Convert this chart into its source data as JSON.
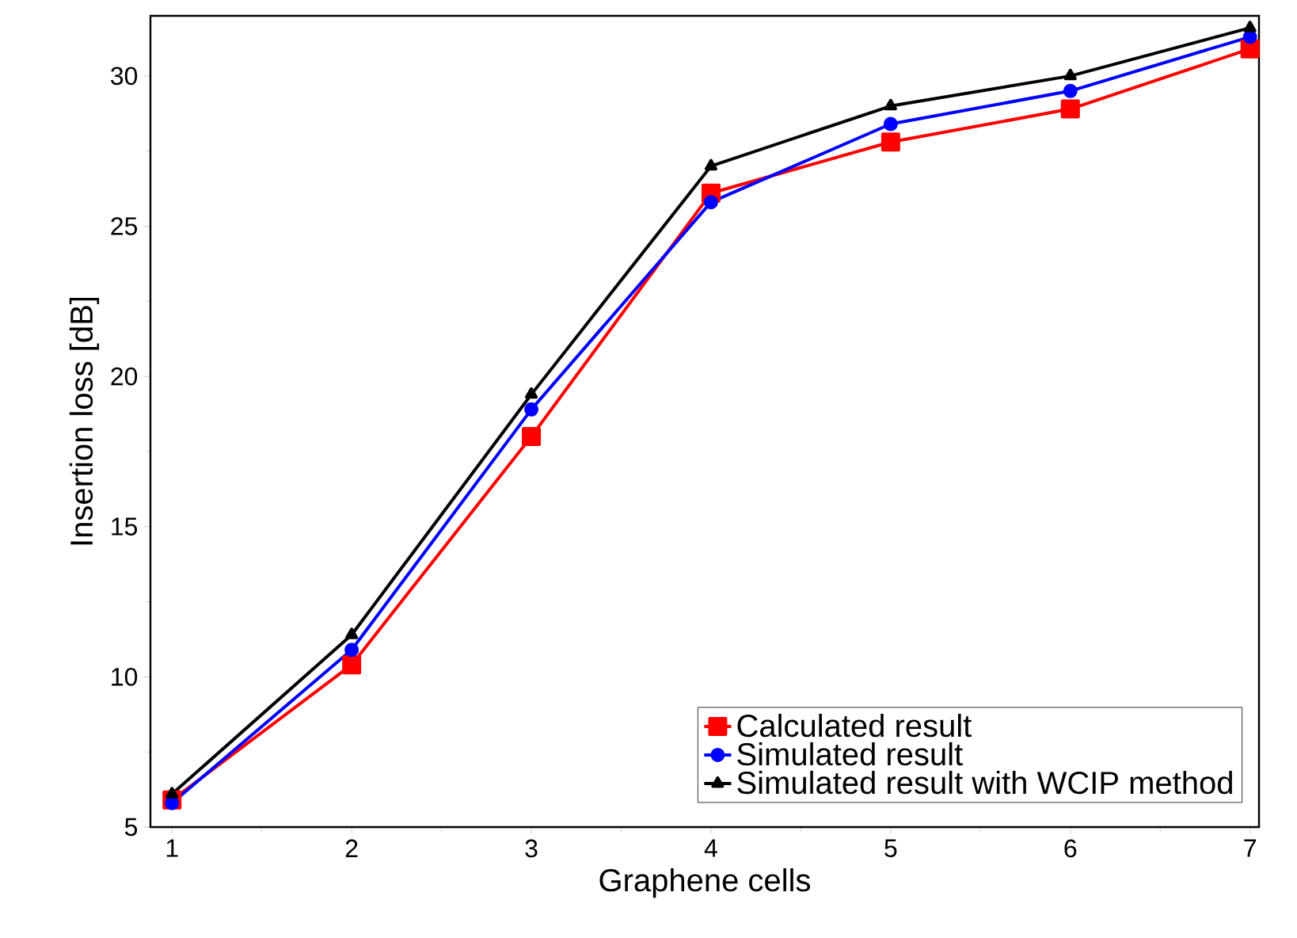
{
  "chart_data": {
    "type": "line",
    "xlabel": "Graphene cells",
    "ylabel": "Insertion loss [dB]",
    "x": [
      1,
      2,
      3,
      4,
      5,
      6,
      7
    ],
    "series": [
      {
        "name": "Calculated result",
        "color": "#ff0000",
        "marker": "square",
        "values": [
          5.9,
          10.4,
          18.0,
          26.1,
          27.8,
          28.9,
          30.9
        ]
      },
      {
        "name": "Simulated result",
        "color": "#0000ff",
        "marker": "circle",
        "values": [
          5.8,
          10.9,
          18.9,
          25.8,
          28.4,
          29.5,
          31.3
        ]
      },
      {
        "name": "Simulated result with WCIP method",
        "color": "#000000",
        "marker": "triangle",
        "values": [
          6.1,
          11.4,
          19.4,
          27.0,
          29.0,
          30.0,
          31.6
        ]
      }
    ],
    "xlim": [
      0.88,
      7.05
    ],
    "ylim": [
      5,
      32
    ],
    "xticks": [
      1,
      2,
      3,
      4,
      5,
      6,
      7
    ],
    "yticks": [
      5,
      10,
      15,
      20,
      25,
      30
    ],
    "grid": false,
    "legend": "bottom right",
    "line_style": "solid"
  }
}
